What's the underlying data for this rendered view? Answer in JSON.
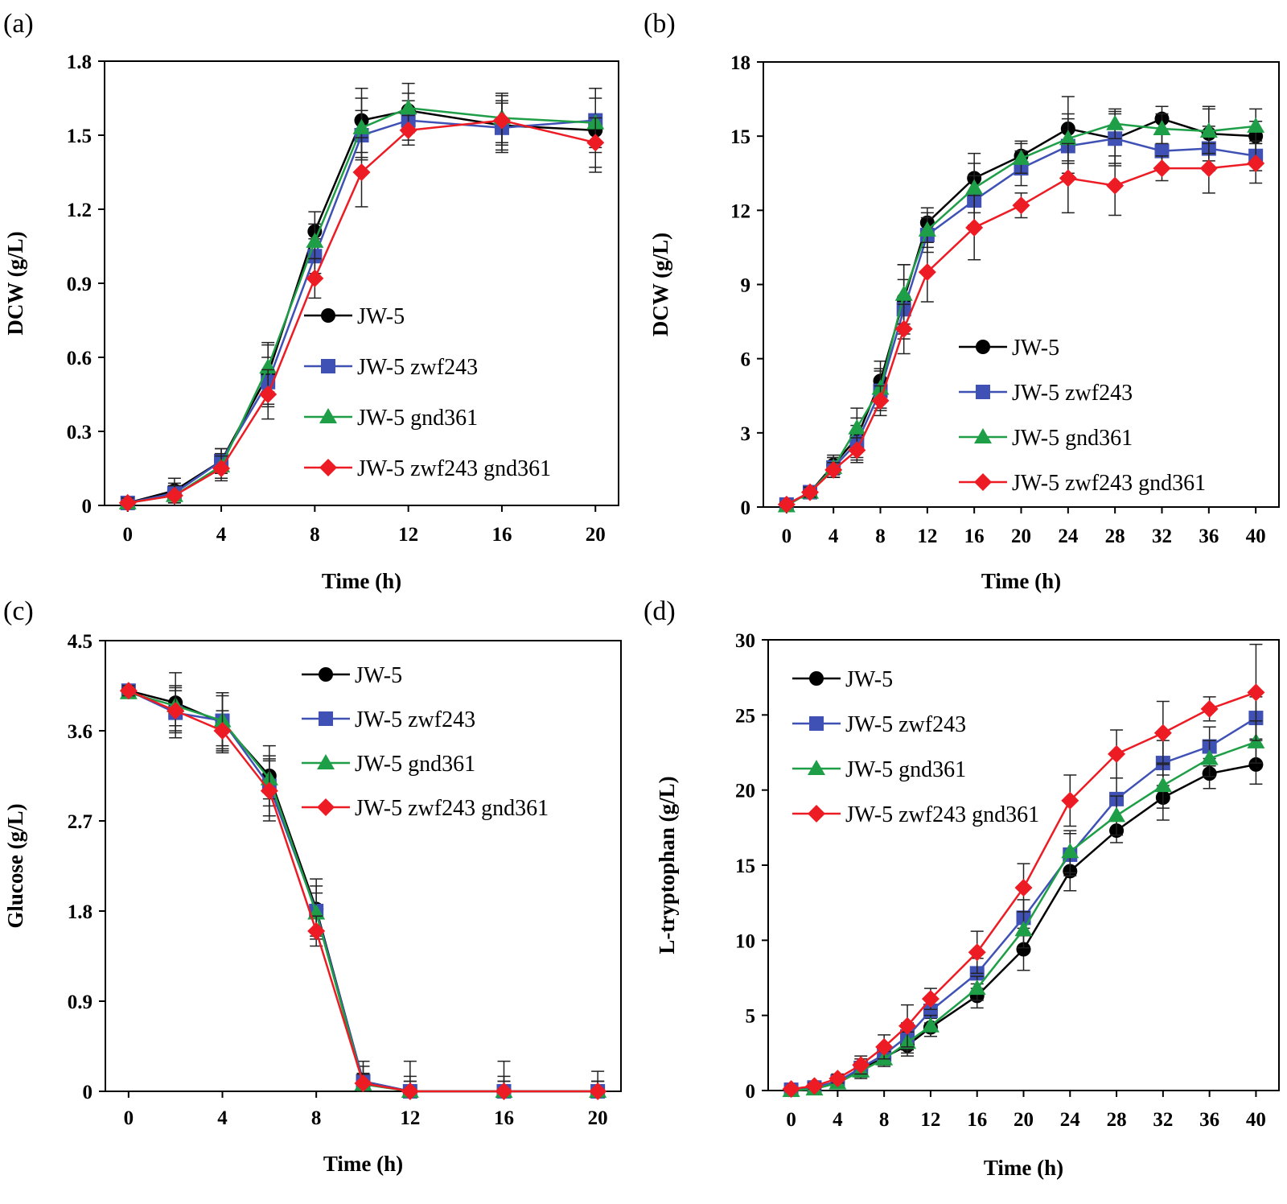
{
  "figure": {
    "series_styles": [
      {
        "name": "JW-5",
        "color": "#000000",
        "marker": "circle"
      },
      {
        "name": "JW-5 zwf243",
        "color": "#3f51b5",
        "marker": "square"
      },
      {
        "name": "JW-5 gnd361",
        "color": "#1e9e47",
        "marker": "triangle"
      },
      {
        "name": "JW-5 zwf243 gnd361",
        "color": "#ed1c24",
        "marker": "diamond"
      }
    ]
  },
  "chart_data": [
    {
      "panel": "(a)",
      "type": "line",
      "xlabel": "Time (h)",
      "ylabel": "DCW (g/L)",
      "x_ticks": [
        "0",
        "4",
        "8",
        "12",
        "16",
        "20"
      ],
      "y_ticks": [
        "0",
        "0.3",
        "0.6",
        "0.9",
        "1.2",
        "1.5",
        "1.8"
      ],
      "ylim": [
        0,
        1.8
      ],
      "legend_position": "center-right",
      "series": [
        {
          "name": "JW-5",
          "x": [
            0,
            2,
            4,
            6,
            8,
            10,
            12,
            16,
            20
          ],
          "y": [
            0.01,
            0.06,
            0.18,
            0.53,
            1.11,
            1.56,
            1.6,
            1.54,
            1.52
          ],
          "err": [
            0.02,
            0.05,
            0.05,
            0.12,
            0.08,
            0.13,
            0.07,
            0.1,
            0.17
          ]
        },
        {
          "name": "JW-5 zwf243",
          "x": [
            0,
            2,
            4,
            6,
            8,
            10,
            12,
            16,
            20
          ],
          "y": [
            0.01,
            0.05,
            0.18,
            0.5,
            1.01,
            1.5,
            1.56,
            1.53,
            1.56
          ],
          "err": [
            0.02,
            0.04,
            0.05,
            0.1,
            0.07,
            0.1,
            0.08,
            0.1,
            0.13
          ]
        },
        {
          "name": "JW-5 gnd361",
          "x": [
            0,
            2,
            4,
            6,
            8,
            10,
            12,
            16,
            20
          ],
          "y": [
            0.01,
            0.04,
            0.16,
            0.56,
            1.07,
            1.53,
            1.61,
            1.57,
            1.55
          ],
          "err": [
            0.02,
            0.04,
            0.05,
            0.1,
            0.07,
            0.12,
            0.1,
            0.1,
            0.1
          ]
        },
        {
          "name": "JW-5 zwf243 gnd361",
          "x": [
            0,
            2,
            4,
            6,
            8,
            10,
            12,
            16,
            20
          ],
          "y": [
            0.01,
            0.04,
            0.15,
            0.45,
            0.92,
            1.35,
            1.52,
            1.56,
            1.47
          ],
          "err": [
            0.02,
            0.04,
            0.05,
            0.1,
            0.08,
            0.14,
            0.06,
            0.1,
            0.1
          ]
        }
      ]
    },
    {
      "panel": "(b)",
      "type": "line",
      "xlabel": "Time (h)",
      "ylabel": "DCW (g/L)",
      "x_ticks": [
        "0",
        "4",
        "8",
        "12",
        "16",
        "20",
        "24",
        "28",
        "32",
        "36",
        "40"
      ],
      "y_ticks": [
        "0",
        "3",
        "6",
        "9",
        "12",
        "15",
        "18"
      ],
      "ylim": [
        0,
        18
      ],
      "legend_position": "center-right",
      "series": [
        {
          "name": "JW-5",
          "x": [
            0,
            2,
            4,
            6,
            8,
            10,
            12,
            16,
            20,
            24,
            28,
            32,
            36,
            40
          ],
          "y": [
            0.1,
            0.6,
            1.7,
            2.8,
            5.1,
            8.4,
            11.5,
            13.3,
            14.2,
            15.3,
            14.9,
            15.7,
            15.1,
            15.0
          ],
          "err": [
            0.1,
            0.2,
            0.4,
            0.8,
            0.8,
            1.4,
            0.6,
            1.0,
            0.6,
            1.3,
            1.0,
            0.5,
            1.1,
            0.6
          ]
        },
        {
          "name": "JW-5 zwf243",
          "x": [
            0,
            2,
            4,
            6,
            8,
            10,
            12,
            16,
            20,
            24,
            28,
            32,
            36,
            40
          ],
          "y": [
            0.1,
            0.6,
            1.6,
            2.6,
            4.7,
            8.0,
            11.0,
            12.4,
            13.7,
            14.6,
            14.9,
            14.4,
            14.5,
            14.2
          ],
          "err": [
            0.1,
            0.2,
            0.4,
            0.7,
            0.8,
            1.2,
            0.7,
            1.0,
            0.7,
            1.1,
            1.1,
            0.7,
            0.9,
            0.6
          ]
        },
        {
          "name": "JW-5 gnd361",
          "x": [
            0,
            2,
            4,
            6,
            8,
            10,
            12,
            16,
            20,
            24,
            28,
            32,
            36,
            40
          ],
          "y": [
            0.05,
            0.6,
            1.6,
            3.2,
            4.8,
            8.6,
            11.2,
            12.9,
            14.1,
            14.9,
            15.5,
            15.3,
            15.2,
            15.4
          ],
          "err": [
            0.1,
            0.2,
            0.4,
            0.8,
            0.8,
            1.2,
            0.7,
            1.0,
            0.6,
            1.0,
            0.6,
            0.6,
            0.9,
            0.7
          ]
        },
        {
          "name": "JW-5 zwf243 gnd361",
          "x": [
            0,
            2,
            4,
            6,
            8,
            10,
            12,
            16,
            20,
            24,
            28,
            32,
            36,
            40
          ],
          "y": [
            0.1,
            0.6,
            1.5,
            2.3,
            4.3,
            7.2,
            9.5,
            11.3,
            12.2,
            13.3,
            13.0,
            13.7,
            13.7,
            13.9
          ],
          "err": [
            0.1,
            0.2,
            0.3,
            0.5,
            0.6,
            1.0,
            1.2,
            1.3,
            0.5,
            1.4,
            1.2,
            0.5,
            1.0,
            0.8
          ]
        }
      ]
    },
    {
      "panel": "(c)",
      "type": "line",
      "xlabel": "Time (h)",
      "ylabel": "Glucose (g/L)",
      "x_ticks": [
        "0",
        "4",
        "8",
        "12",
        "16",
        "20"
      ],
      "y_ticks": [
        "0",
        "0.9",
        "1.8",
        "2.7",
        "3.6",
        "4.5"
      ],
      "ylim": [
        0,
        4.5
      ],
      "legend_position": "top-right",
      "series": [
        {
          "name": "JW-5",
          "x": [
            0,
            2,
            4,
            6,
            8,
            10,
            12,
            16,
            20
          ],
          "y": [
            4.0,
            3.88,
            3.68,
            3.15,
            1.82,
            0.1,
            0.0,
            0.0,
            0.0
          ],
          "err": [
            0.05,
            0.3,
            0.3,
            0.3,
            0.3,
            0.2,
            0.3,
            0.3,
            0.2
          ]
        },
        {
          "name": "JW-5 zwf243",
          "x": [
            0,
            2,
            4,
            6,
            8,
            10,
            12,
            16,
            20
          ],
          "y": [
            4.0,
            3.78,
            3.7,
            3.05,
            1.8,
            0.1,
            0.0,
            0.0,
            0.0
          ],
          "err": [
            0.05,
            0.25,
            0.28,
            0.3,
            0.25,
            0.15,
            0.15,
            0.15,
            0.1
          ]
        },
        {
          "name": "JW-5 gnd361",
          "x": [
            0,
            2,
            4,
            6,
            8,
            10,
            12,
            16,
            20
          ],
          "y": [
            3.98,
            3.85,
            3.7,
            3.12,
            1.78,
            0.07,
            0.0,
            0.0,
            0.0
          ],
          "err": [
            0.05,
            0.2,
            0.25,
            0.2,
            0.2,
            0.1,
            0.1,
            0.1,
            0.1
          ]
        },
        {
          "name": "JW-5 zwf243 gnd361",
          "x": [
            0,
            2,
            4,
            6,
            8,
            10,
            12,
            16,
            20
          ],
          "y": [
            4.0,
            3.8,
            3.6,
            3.0,
            1.6,
            0.08,
            0.0,
            0.0,
            0.0
          ],
          "err": [
            0.05,
            0.2,
            0.2,
            0.3,
            0.15,
            0.1,
            0.1,
            0.1,
            0.1
          ]
        }
      ]
    },
    {
      "panel": "(d)",
      "type": "line",
      "xlabel": "Time (h)",
      "ylabel": "L-tryptophan (g/L)",
      "x_ticks": [
        "0",
        "4",
        "8",
        "12",
        "16",
        "20",
        "24",
        "28",
        "32",
        "36",
        "40"
      ],
      "y_ticks": [
        "0",
        "5",
        "10",
        "15",
        "20",
        "25",
        "30"
      ],
      "ylim": [
        0,
        30
      ],
      "legend_position": "top-left",
      "series": [
        {
          "name": "JW-5",
          "x": [
            0,
            2,
            4,
            6,
            8,
            10,
            12,
            16,
            20,
            24,
            28,
            32,
            36,
            40
          ],
          "y": [
            0.05,
            0.2,
            0.6,
            1.4,
            2.2,
            3.0,
            4.2,
            6.3,
            9.4,
            14.6,
            17.3,
            19.5,
            21.1,
            21.7
          ],
          "err": [
            0.1,
            0.2,
            0.3,
            0.5,
            0.5,
            0.7,
            0.6,
            0.8,
            1.4,
            1.3,
            0.8,
            1.5,
            1.0,
            1.3
          ]
        },
        {
          "name": "JW-5 zwf243",
          "x": [
            0,
            2,
            4,
            6,
            8,
            10,
            12,
            16,
            20,
            24,
            28,
            32,
            36,
            40
          ],
          "y": [
            0.05,
            0.2,
            0.6,
            1.5,
            2.4,
            3.6,
            5.3,
            7.8,
            11.5,
            15.7,
            19.4,
            21.8,
            22.9,
            24.8
          ],
          "err": [
            0.1,
            0.2,
            0.3,
            0.6,
            0.6,
            0.9,
            0.8,
            1.0,
            1.2,
            1.4,
            1.4,
            1.5,
            1.3,
            1.4
          ]
        },
        {
          "name": "JW-5 gnd361",
          "x": [
            0,
            2,
            4,
            6,
            8,
            10,
            12,
            16,
            20,
            24,
            28,
            32,
            36,
            40
          ],
          "y": [
            0.0,
            0.1,
            0.5,
            1.3,
            2.1,
            3.2,
            4.3,
            6.8,
            10.7,
            15.9,
            18.3,
            20.3,
            22.1,
            23.2
          ],
          "err": [
            0.1,
            0.2,
            0.3,
            0.5,
            0.5,
            0.7,
            0.7,
            0.8,
            1.2,
            1.4,
            1.3,
            1.5,
            1.2,
            1.4
          ]
        },
        {
          "name": "JW-5 zwf243 gnd361",
          "x": [
            0,
            2,
            4,
            6,
            8,
            10,
            12,
            16,
            20,
            24,
            28,
            32,
            36,
            40
          ],
          "y": [
            0.1,
            0.3,
            0.8,
            1.7,
            2.9,
            4.3,
            6.1,
            9.2,
            13.5,
            19.3,
            22.4,
            23.8,
            25.4,
            26.5
          ],
          "err": [
            0.1,
            0.2,
            0.3,
            0.6,
            0.8,
            1.4,
            0.7,
            1.4,
            1.6,
            1.7,
            1.6,
            2.1,
            0.8,
            3.2
          ]
        }
      ]
    }
  ]
}
